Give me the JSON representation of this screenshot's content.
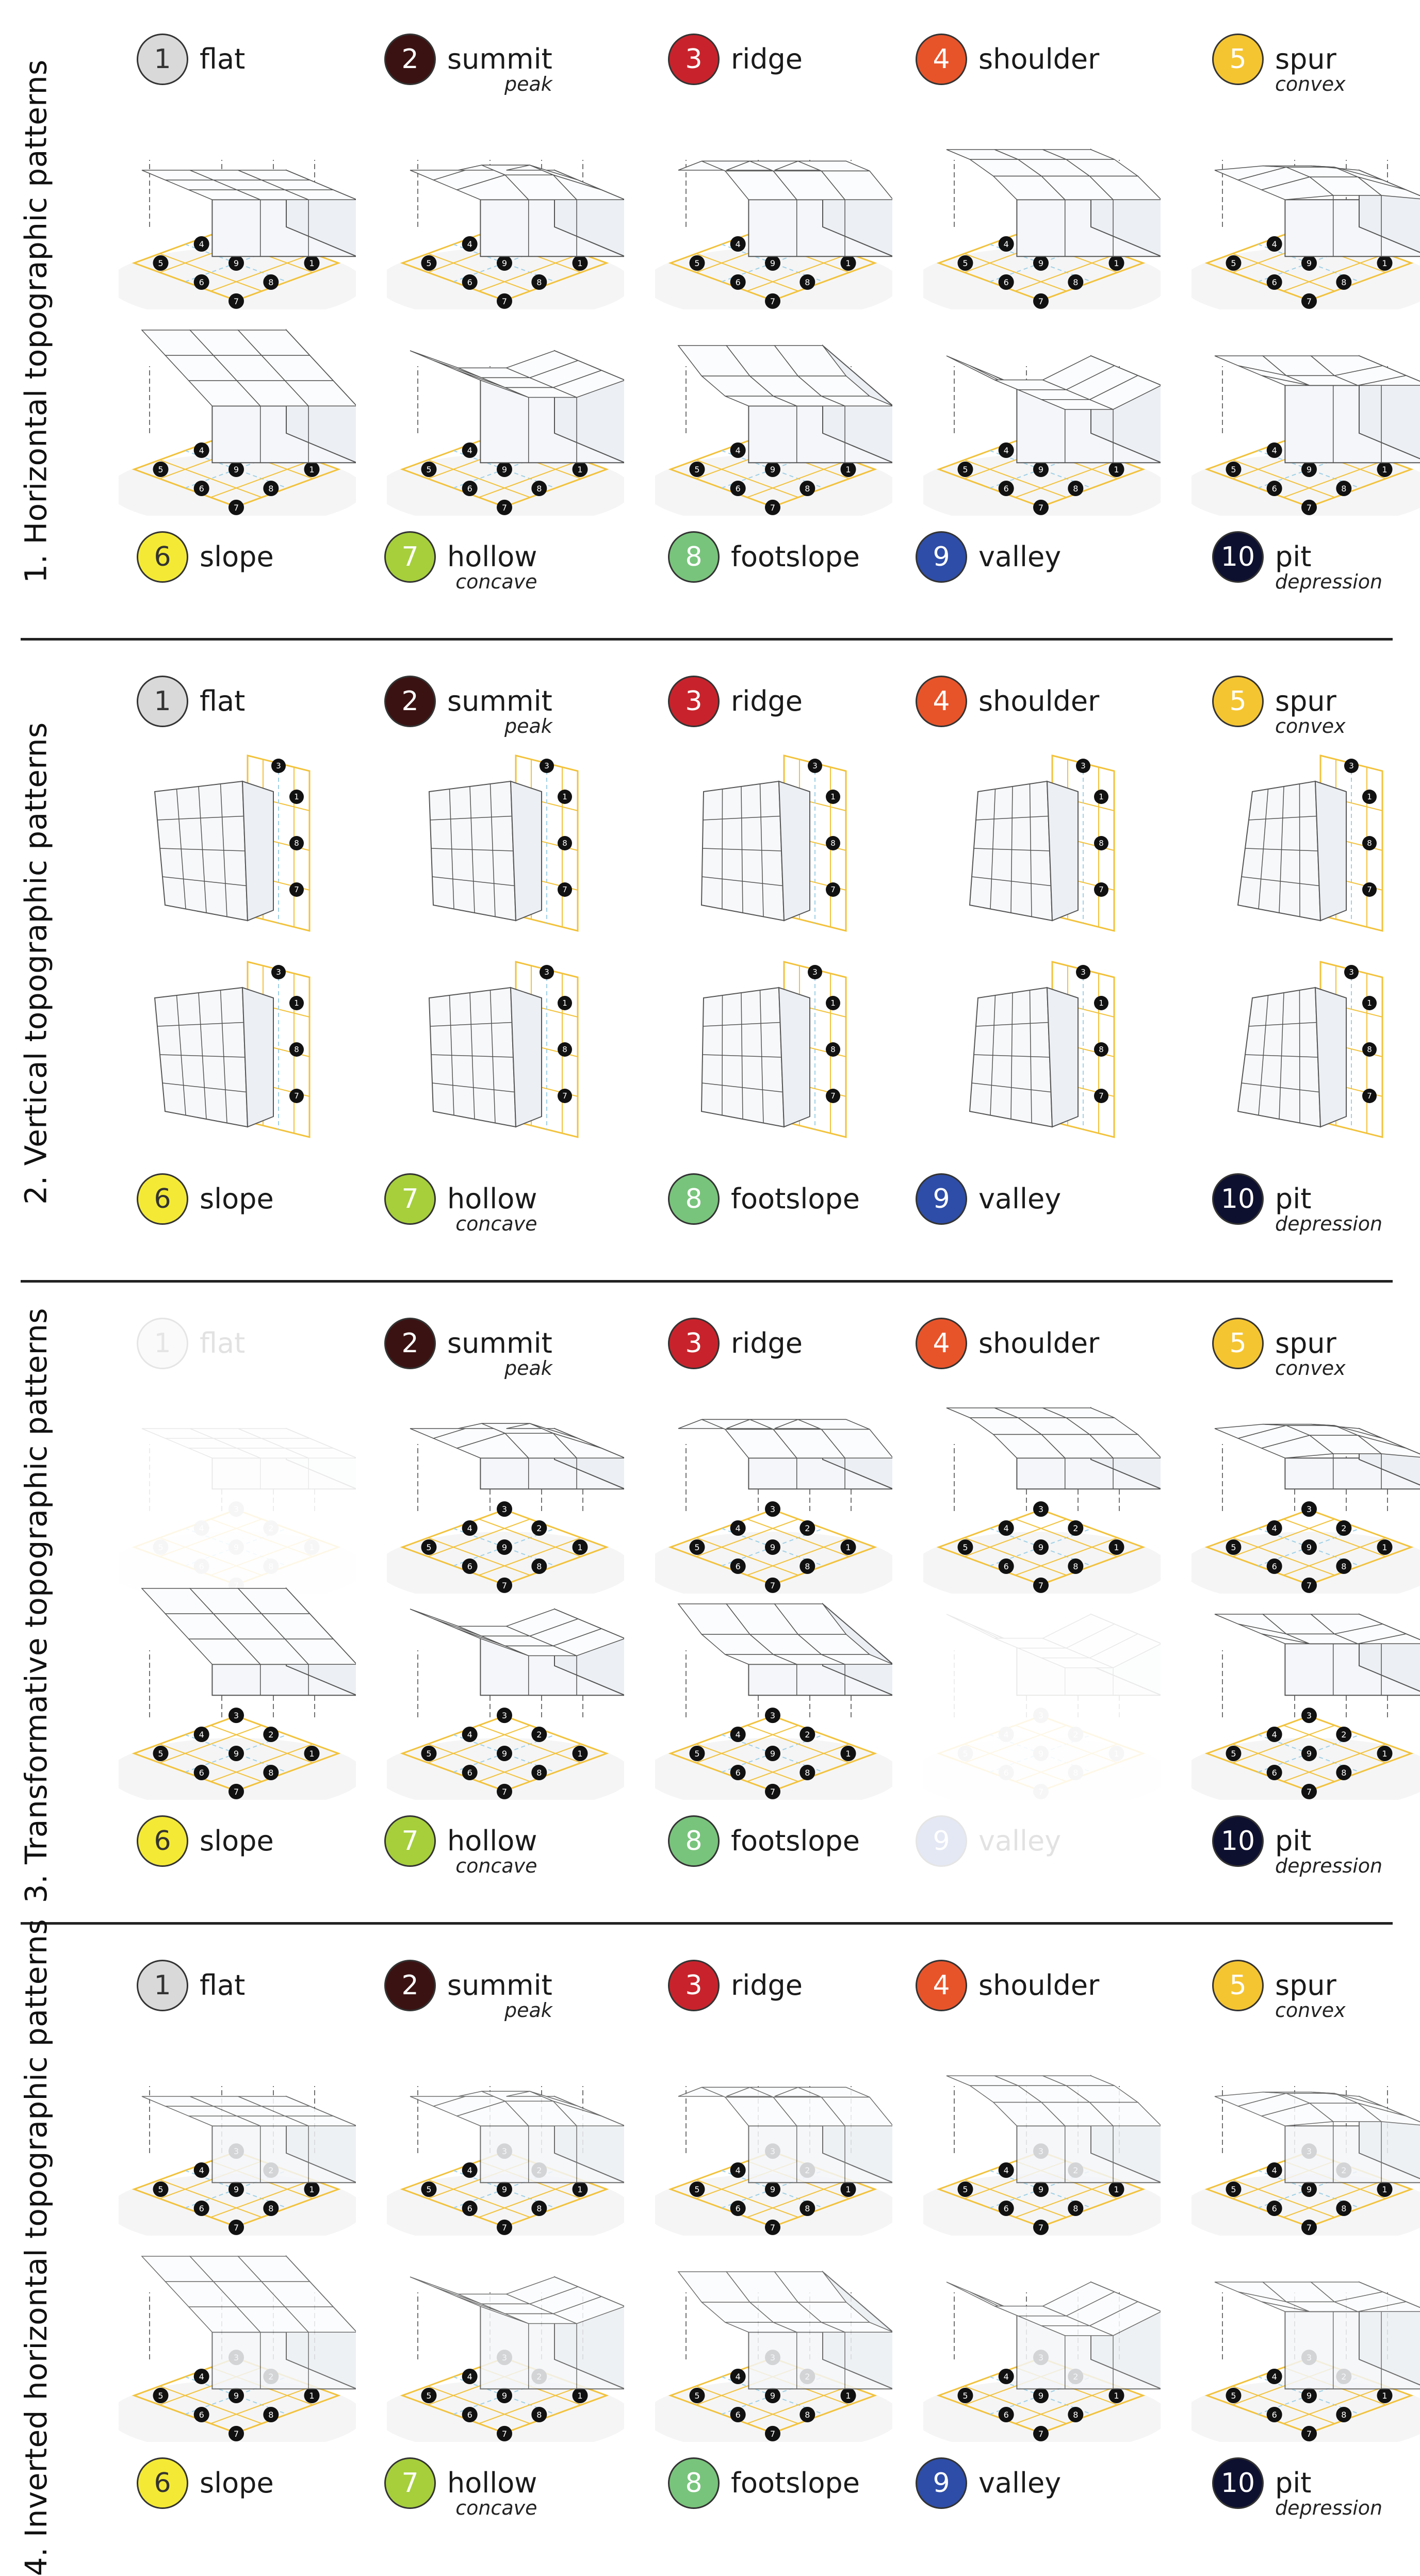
{
  "colors": {
    "flat": "#d9d9d9",
    "summit": "#3b1212",
    "ridge": "#c8232c",
    "shoulder": "#e8542a",
    "spur": "#f5c531",
    "slope": "#f4ea35",
    "hollow": "#a6cf3b",
    "footslope": "#78c47c",
    "valley": "#2e4da8",
    "pit": "#0e1030",
    "grid": "#f2c23a",
    "grid_inner": "#9fd0e6",
    "ink": "#333333"
  },
  "patterns": [
    {
      "num": "1",
      "name": "flat",
      "sub": "",
      "color_key": "flat",
      "text_dark": true
    },
    {
      "num": "2",
      "name": "summit",
      "sub": "peak",
      "color_key": "summit",
      "text_dark": false
    },
    {
      "num": "3",
      "name": "ridge",
      "sub": "",
      "color_key": "ridge",
      "text_dark": false
    },
    {
      "num": "4",
      "name": "shoulder",
      "sub": "",
      "color_key": "shoulder",
      "text_dark": false
    },
    {
      "num": "5",
      "name": "spur",
      "sub": "convex",
      "color_key": "spur",
      "text_dark": false
    },
    {
      "num": "6",
      "name": "slope",
      "sub": "",
      "color_key": "slope",
      "text_dark": true
    },
    {
      "num": "7",
      "name": "hollow",
      "sub": "concave",
      "color_key": "hollow",
      "text_dark": false
    },
    {
      "num": "8",
      "name": "footslope",
      "sub": "",
      "color_key": "footslope",
      "text_dark": false
    },
    {
      "num": "9",
      "name": "valley",
      "sub": "",
      "color_key": "valley",
      "text_dark": false
    },
    {
      "num": "10",
      "name": "pit",
      "sub": "depression",
      "color_key": "pit",
      "text_dark": false
    }
  ],
  "sections": [
    {
      "title": "1. Horizontal topographic patterns",
      "kind": "horizontal",
      "faded": []
    },
    {
      "title": "2. Vertical topographic patterns",
      "kind": "vertical",
      "faded": []
    },
    {
      "title": "3. Transformative topographic patterns",
      "kind": "transform",
      "faded": [
        0,
        8
      ]
    },
    {
      "title": "4. Inverted horizontal topographic patterns",
      "kind": "inverted",
      "faded": []
    }
  ]
}
